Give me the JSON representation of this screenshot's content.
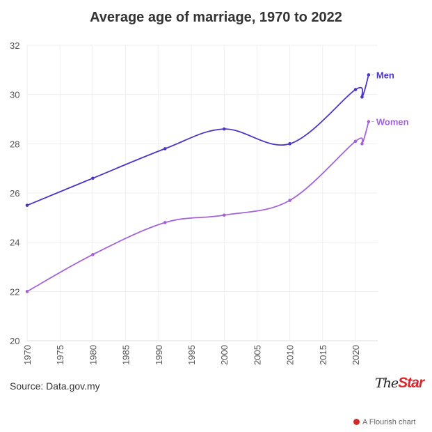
{
  "chart_data": {
    "type": "line",
    "title": "Average age of marriage, 1970 to 2022",
    "xlabel": "",
    "ylabel": "",
    "xlim": [
      1970,
      2022
    ],
    "ylim": [
      20,
      32
    ],
    "x_ticks": [
      1970,
      1975,
      1980,
      1985,
      1990,
      1995,
      2000,
      2005,
      2010,
      2015,
      2020
    ],
    "y_ticks": [
      20,
      22,
      24,
      26,
      28,
      30,
      32
    ],
    "grid": true,
    "legend": "direct labels at line ends",
    "series": [
      {
        "name": "Men",
        "color": "#4b35c9",
        "x": [
          1970,
          1980,
          1991,
          2000,
          2010,
          2020,
          2021,
          2022
        ],
        "values": [
          25.5,
          26.6,
          27.8,
          28.6,
          28.0,
          30.2,
          29.9,
          30.8
        ]
      },
      {
        "name": "Women",
        "color": "#a463da",
        "x": [
          1970,
          1980,
          1991,
          2000,
          2010,
          2020,
          2021,
          2022
        ],
        "values": [
          22.0,
          23.5,
          24.8,
          25.1,
          25.7,
          28.1,
          28.0,
          28.9
        ]
      }
    ]
  },
  "footer": {
    "source": "Source: Data.gov.my",
    "logo_the": "The",
    "logo_star": "Star",
    "flourish": "A Flourish chart"
  }
}
